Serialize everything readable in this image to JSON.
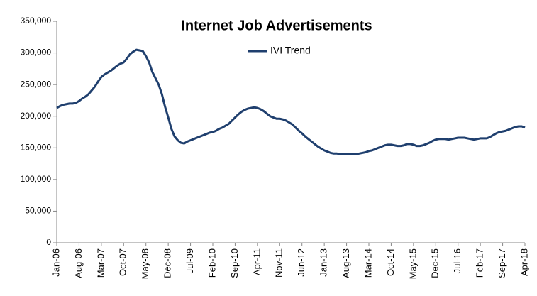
{
  "chart_data": {
    "type": "line",
    "title": "Internet Job Advertisements",
    "categories": [
      "Jan-06",
      null,
      null,
      null,
      null,
      null,
      null,
      "Aug-06",
      null,
      null,
      null,
      null,
      null,
      null,
      "Mar-07",
      null,
      null,
      null,
      null,
      null,
      null,
      "Oct-07",
      null,
      null,
      null,
      null,
      null,
      null,
      "May-08",
      null,
      null,
      null,
      null,
      null,
      null,
      "Dec-08",
      null,
      null,
      null,
      null,
      null,
      null,
      "Jul-09",
      null,
      null,
      null,
      null,
      null,
      null,
      "Feb-10",
      null,
      null,
      null,
      null,
      null,
      null,
      "Sep-10",
      null,
      null,
      null,
      null,
      null,
      null,
      "Apr-11",
      null,
      null,
      null,
      null,
      null,
      null,
      "Nov-11",
      null,
      null,
      null,
      null,
      null,
      null,
      "Jun-12",
      null,
      null,
      null,
      null,
      null,
      null,
      "Jan-13",
      null,
      null,
      null,
      null,
      null,
      null,
      "Aug-13",
      null,
      null,
      null,
      null,
      null,
      null,
      "Mar-14",
      null,
      null,
      null,
      null,
      null,
      null,
      "Oct-14",
      null,
      null,
      null,
      null,
      null,
      null,
      "May-15",
      null,
      null,
      null,
      null,
      null,
      null,
      "Dec-15",
      null,
      null,
      null,
      null,
      null,
      null,
      "Jul-16",
      null,
      null,
      null,
      null,
      null,
      null,
      "Feb-17",
      null,
      null,
      null,
      null,
      null,
      null,
      "Sep-17",
      null,
      null,
      null,
      null,
      null,
      null,
      "Apr-18"
    ],
    "series": [
      {
        "name": "IVI Trend",
        "color": "#1f3f6e",
        "values": [
          213000,
          216000,
          218000,
          219000,
          220000,
          220000,
          221000,
          224000,
          228000,
          231000,
          235000,
          241000,
          247000,
          255000,
          262000,
          266000,
          269000,
          272000,
          276000,
          280000,
          283000,
          285000,
          291000,
          298000,
          302000,
          305000,
          304000,
          303000,
          295000,
          285000,
          270000,
          260000,
          250000,
          235000,
          215000,
          198000,
          180000,
          168000,
          162000,
          158000,
          157000,
          160000,
          162000,
          164000,
          166000,
          168000,
          170000,
          172000,
          174000,
          175000,
          177000,
          180000,
          182000,
          185000,
          188000,
          193000,
          198000,
          203000,
          207000,
          210000,
          212000,
          213000,
          214000,
          213000,
          211000,
          208000,
          204000,
          200000,
          198000,
          196000,
          196000,
          195000,
          193000,
          190000,
          187000,
          182000,
          177000,
          173000,
          168000,
          164000,
          160000,
          156000,
          152000,
          149000,
          146000,
          144000,
          142000,
          141000,
          141000,
          140000,
          140000,
          140000,
          140000,
          140000,
          140000,
          141000,
          142000,
          143000,
          145000,
          146000,
          148000,
          150000,
          152000,
          154000,
          155000,
          155000,
          154000,
          153000,
          153000,
          154000,
          156000,
          156000,
          155000,
          153000,
          153000,
          154000,
          156000,
          158000,
          161000,
          163000,
          164000,
          164000,
          164000,
          163000,
          164000,
          165000,
          166000,
          166000,
          166000,
          165000,
          164000,
          163000,
          164000,
          165000,
          165000,
          165000,
          167000,
          170000,
          173000,
          175000,
          176000,
          177000,
          179000,
          181000,
          183000,
          184000,
          184000,
          182000
        ]
      }
    ],
    "ylim": [
      0,
      350000
    ],
    "yticks": [
      0,
      {
        "value": 50000,
        "label": "50,000"
      },
      {
        "value": 100000,
        "label": "100,000"
      },
      {
        "value": 150000,
        "label": "150,000"
      },
      {
        "value": 200000,
        "label": "200,000"
      },
      {
        "value": 250000,
        "label": "250,000"
      },
      {
        "value": 300000,
        "label": "300,000"
      },
      {
        "value": 350000,
        "label": "350,000"
      }
    ],
    "grid": false
  }
}
